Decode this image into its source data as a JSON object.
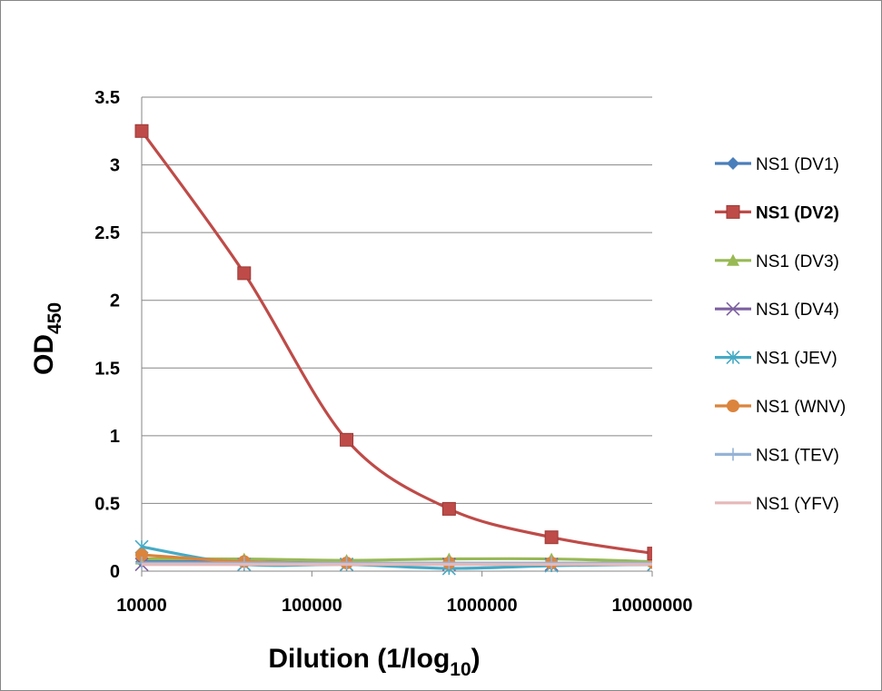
{
  "chart_data": {
    "type": "line",
    "xscale": "log",
    "xlim": [
      10000,
      10000000
    ],
    "ylim": [
      0,
      3.5
    ],
    "x_ticks": [
      "10000",
      "100000",
      "1000000",
      "10000000"
    ],
    "y_ticks": [
      "0",
      "0.5",
      "1",
      "1.5",
      "2",
      "2.5",
      "3",
      "3.5"
    ],
    "xlabel": {
      "main": "Dilution (1/log",
      "sub": "10",
      "tail": ")"
    },
    "ylabel": {
      "main": "OD",
      "sub": "450"
    },
    "grid": "horizontal",
    "legend_position": "right",
    "x": [
      10000,
      40000,
      160000,
      640000,
      2560000,
      10240000
    ],
    "series": [
      {
        "name": "NS1 (DV1)",
        "color": "#4A7EBB",
        "marker": "diamond",
        "values": [
          0.07,
          0.07,
          0.06,
          0.06,
          0.05,
          0.05
        ]
      },
      {
        "name": "NS1 (DV2)",
        "color": "#BE4B48",
        "marker": "square",
        "bold": true,
        "values": [
          3.25,
          2.2,
          0.97,
          0.46,
          0.25,
          0.13
        ]
      },
      {
        "name": "NS1 (DV3)",
        "color": "#98B954",
        "marker": "triangle",
        "values": [
          0.09,
          0.09,
          0.08,
          0.09,
          0.09,
          0.07
        ]
      },
      {
        "name": "NS1 (DV4)",
        "color": "#7D60A0",
        "marker": "x",
        "values": [
          0.05,
          0.05,
          0.05,
          0.05,
          0.05,
          0.05
        ]
      },
      {
        "name": "NS1 (JEV)",
        "color": "#46AAC5",
        "marker": "star",
        "values": [
          0.18,
          0.05,
          0.05,
          0.02,
          0.04,
          0.05
        ]
      },
      {
        "name": "NS1 (WNV)",
        "color": "#DB843D",
        "marker": "circle",
        "values": [
          0.12,
          0.07,
          0.06,
          0.06,
          0.06,
          0.06
        ]
      },
      {
        "name": "NS1 (TEV)",
        "color": "#95B3D7",
        "marker": "plus",
        "values": [
          0.06,
          0.06,
          0.06,
          0.06,
          0.06,
          0.06
        ]
      },
      {
        "name": "NS1 (YFV)",
        "color": "#E6B9B8",
        "marker": "none",
        "values": [
          0.05,
          0.05,
          0.05,
          0.05,
          0.05,
          0.05
        ]
      }
    ]
  }
}
